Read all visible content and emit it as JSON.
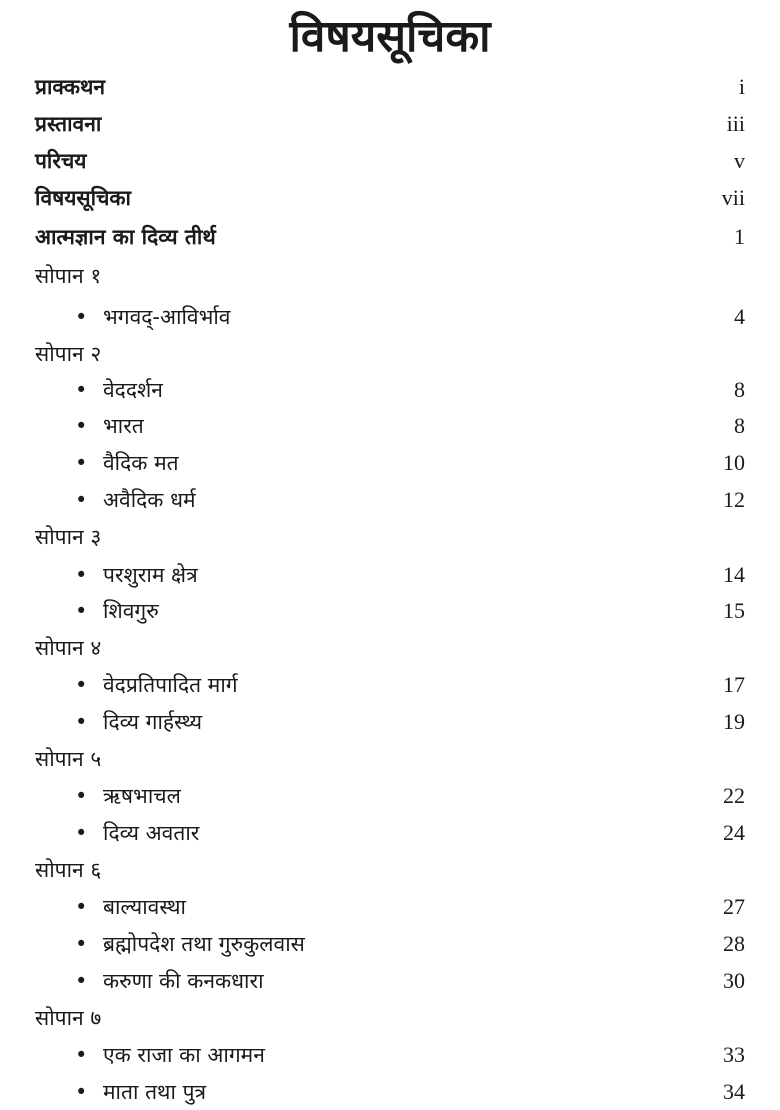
{
  "title": "विषयसूचिका",
  "entries": [
    {
      "label": "प्राक्कथन",
      "page": "i",
      "level": 0
    },
    {
      "label": "प्रस्तावना",
      "page": "iii",
      "level": 0
    },
    {
      "label": "परिचय",
      "page": "v",
      "level": 0
    },
    {
      "label": "विषयसूचिका",
      "page": "vii",
      "level": 0
    },
    {
      "label": "आत्मज्ञान का दिव्य तीर्थ",
      "page": "1",
      "level": 0
    },
    {
      "label": "सोपान १",
      "page": "",
      "level": 0
    },
    {
      "label": "भगवद्-आविर्भाव",
      "page": "4",
      "level": 1
    },
    {
      "label": "सोपान २",
      "page": "",
      "level": 0
    },
    {
      "label": "वेददर्शन",
      "page": "8",
      "level": 1
    },
    {
      "label": "भारत",
      "page": "8",
      "level": 1
    },
    {
      "label": "वैदिक मत",
      "page": "10",
      "level": 1
    },
    {
      "label": "अवैदिक धर्म",
      "page": "12",
      "level": 1
    },
    {
      "label": "सोपान ३",
      "page": "",
      "level": 0
    },
    {
      "label": "परशुराम क्षेत्र",
      "page": "14",
      "level": 1
    },
    {
      "label": "शिवगुरु",
      "page": "15",
      "level": 1
    },
    {
      "label": "सोपान ४",
      "page": "",
      "level": 0
    },
    {
      "label": "वेदप्रतिपादित मार्ग",
      "page": "17",
      "level": 1
    },
    {
      "label": "दिव्य गार्हस्थ्य",
      "page": "19",
      "level": 1
    },
    {
      "label": "सोपान ५",
      "page": "",
      "level": 0
    },
    {
      "label": "ऋषभाचल",
      "page": "22",
      "level": 1
    },
    {
      "label": "दिव्य अवतार",
      "page": "24",
      "level": 1
    },
    {
      "label": "सोपान ६",
      "page": "",
      "level": 0
    },
    {
      "label": "बाल्यावस्था",
      "page": "27",
      "level": 1
    },
    {
      "label": "ब्रह्मोपदेश तथा गुरुकुलवास",
      "page": "28",
      "level": 1
    },
    {
      "label": "करुणा की कनकधारा",
      "page": "30",
      "level": 1
    },
    {
      "label": "सोपान ७",
      "page": "",
      "level": 0
    },
    {
      "label": "एक राजा का आगमन",
      "page": "33",
      "level": 1
    },
    {
      "label": "माता तथा पुत्र",
      "page": "34",
      "level": 1
    }
  ]
}
